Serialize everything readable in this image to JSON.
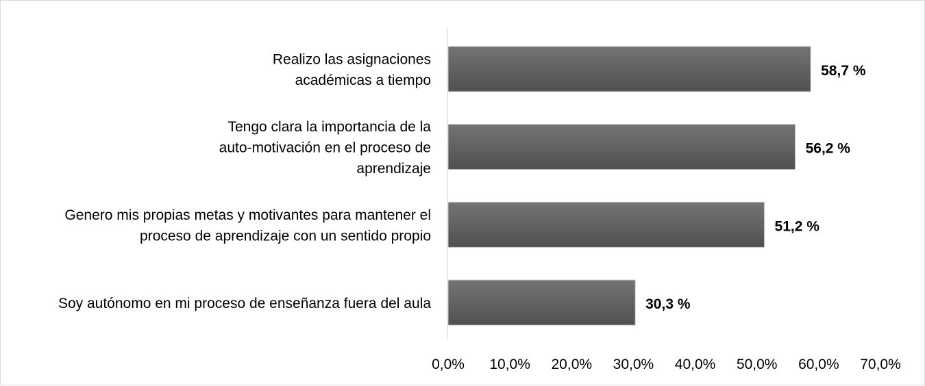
{
  "chart_data": {
    "type": "bar",
    "orientation": "horizontal",
    "categories": [
      [
        "Realizo las asignaciones",
        "académicas a tiempo"
      ],
      [
        "Tengo clara la importancia de la",
        "auto-motivación en el proceso de",
        "aprendizaje"
      ],
      [
        "Genero mis propias metas y motivantes para mantener el",
        "proceso de aprendizaje con un sentido propio"
      ],
      [
        "Soy autónomo en mi proceso de enseñanza fuera del aula"
      ]
    ],
    "values": [
      58.7,
      56.2,
      51.2,
      30.3
    ],
    "data_labels": [
      "58,7 %",
      "56,2 %",
      "51,2 %",
      "30,3 %"
    ],
    "xlim": [
      0,
      70
    ],
    "x_ticks": [
      0,
      10,
      20,
      30,
      40,
      50,
      60,
      70
    ],
    "x_tick_labels": [
      "0,0%",
      "10,0%",
      "20,0%",
      "30,0%",
      "40,0%",
      "50,0%",
      "60,0%",
      "70,0%"
    ],
    "grid": false,
    "legend": "none",
    "bar_color_top": "#747474",
    "bar_color_bottom": "#505050",
    "title": "",
    "xlabel": "",
    "ylabel": ""
  }
}
